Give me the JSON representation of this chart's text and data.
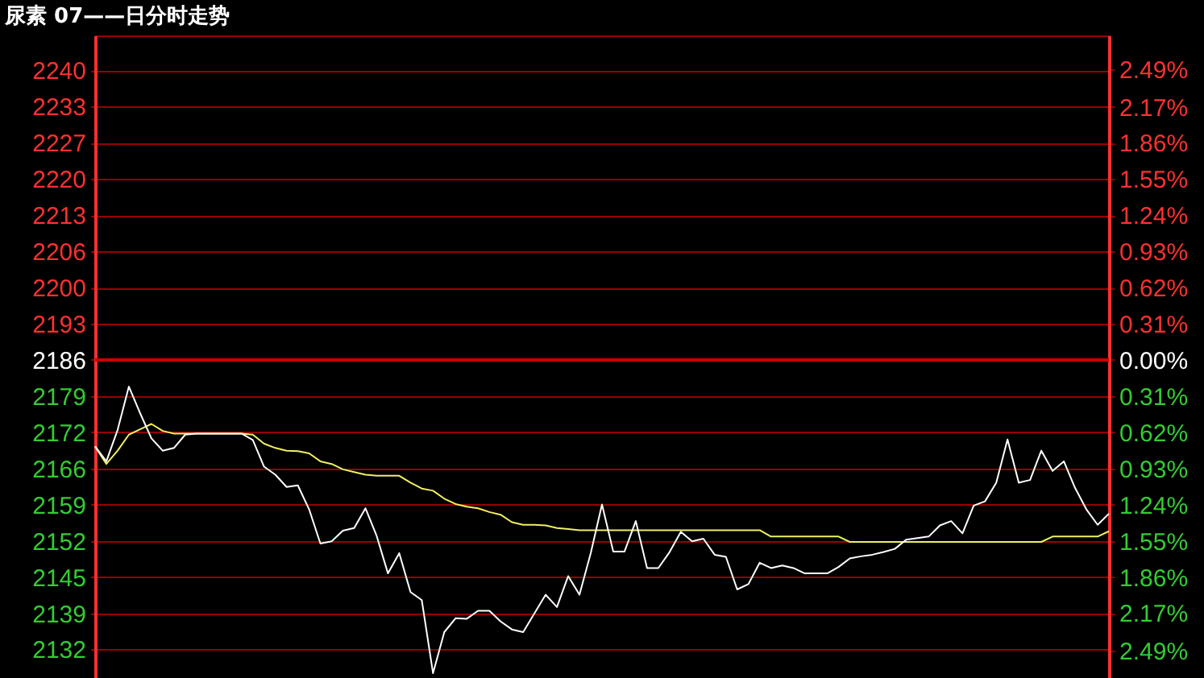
{
  "chart_data": {
    "type": "line",
    "title": "尿素 07——日分时走势",
    "categories": [
      null,
      null,
      null,
      null,
      null,
      null,
      null,
      null,
      null,
      null,
      null,
      null,
      null,
      null,
      null,
      null,
      null,
      null,
      null,
      null,
      null,
      null,
      null,
      null,
      null,
      null,
      null,
      null,
      null,
      null,
      null,
      null,
      null,
      null,
      null,
      null,
      null,
      null,
      null,
      null,
      null,
      null,
      null,
      null,
      null,
      null,
      null,
      null,
      null,
      null,
      null,
      null,
      null,
      null,
      null,
      null,
      null,
      null,
      null,
      null,
      null,
      null,
      null,
      null,
      null,
      null,
      null,
      null,
      null,
      null,
      null,
      null,
      null,
      null,
      null,
      null,
      null,
      null,
      null,
      null,
      null,
      null,
      null,
      null,
      null,
      null,
      null,
      null,
      null,
      null,
      null
    ],
    "series": [
      {
        "color": "#f0f060",
        "values": [
          2169.8,
          2166.5,
          2169,
          2172,
          2173,
          2174,
          2172.7,
          2172.2,
          2172.2,
          2172.2,
          2172.2,
          2172.2,
          2172.2,
          2172.2,
          2172,
          2170.3,
          2169.5,
          2169,
          2168.9,
          2168.5,
          2167,
          2166.5,
          2165.5,
          2165,
          2164.5,
          2164.3,
          2164.3,
          2164.3,
          2163,
          2161.9,
          2161.5,
          2160,
          2159,
          2158.5,
          2158.2,
          2157.5,
          2157,
          2155.6,
          2155.1,
          2155.1,
          2155,
          2154.5,
          2154.3,
          2154.1,
          2154.1,
          2154.1,
          2154.1,
          2154.1,
          2154.1,
          2154.1,
          2154.1,
          2154.1,
          2154.1,
          2154.1,
          2154.1,
          2154.1,
          2154.1,
          2154.1,
          2154.1,
          2154.1,
          2152.9,
          2152.9,
          2152.9,
          2152.9,
          2152.9,
          2152.9,
          2152.9,
          2151.9,
          2151.9,
          2151.9,
          2151.9,
          2151.9,
          2151.9,
          2151.9,
          2151.9,
          2151.9,
          2151.9,
          2151.9,
          2151.9,
          2151.9,
          2151.9,
          2151.9,
          2151.9,
          2151.9,
          2151.9,
          2152.9,
          2152.9,
          2152.9,
          2152.9,
          2152.9,
          2153.9
        ]
      },
      {
        "color": "#ffffff",
        "values": [
          2169.8,
          2167,
          2172.9,
          2181,
          2176,
          2171.3,
          2169,
          2169.5,
          2172,
          2172.2,
          2172.2,
          2172.2,
          2172.2,
          2172.2,
          2171,
          2166,
          2164.5,
          2162.2,
          2162.5,
          2158,
          2151.6,
          2152,
          2154,
          2154.5,
          2158.2,
          2153,
          2146,
          2149.8,
          2142.5,
          2141,
          2127.3,
          2135,
          2137.6,
          2137.5,
          2139,
          2139,
          2137,
          2135.5,
          2135,
          2138.5,
          2142,
          2139.7,
          2145.5,
          2142,
          2149.8,
          2158.9,
          2150.1,
          2150.1,
          2155.8,
          2147,
          2147,
          2150,
          2153.8,
          2152,
          2152.5,
          2149.5,
          2149.1,
          2143,
          2144,
          2148,
          2147,
          2147.5,
          2147,
          2146,
          2146,
          2146,
          2147.2,
          2148.8,
          2149.2,
          2149.5,
          2150,
          2150.6,
          2152.3,
          2152.6,
          2152.9,
          2155,
          2155.8,
          2153.5,
          2158.7,
          2159.5,
          2163,
          2171.1,
          2163,
          2163.5,
          2169,
          2165.2,
          2167,
          2162,
          2158,
          2155.1,
          2157.2
        ]
      }
    ],
    "ylim": [
      2126.4,
      2246.8
    ],
    "yticks": [
      {
        "value": 2131.76,
        "label": "2132"
      },
      {
        "value": 2138.54,
        "label": "2139"
      },
      {
        "value": 2145.32,
        "label": "2145"
      },
      {
        "value": 2152.1,
        "label": "2152"
      },
      {
        "value": 2158.88,
        "label": "2159"
      },
      {
        "value": 2165.66,
        "label": "2166"
      },
      {
        "value": 2172.44,
        "label": "2172"
      },
      {
        "value": 2179.22,
        "label": "2179"
      },
      {
        "value": 2186,
        "label": "2186"
      },
      {
        "value": 2192.78,
        "label": "2193"
      },
      {
        "value": 2199.56,
        "label": "2200"
      },
      {
        "value": 2206.34,
        "label": "2206"
      },
      {
        "value": 2213.12,
        "label": "2213"
      },
      {
        "value": 2219.9,
        "label": "2220"
      },
      {
        "value": 2226.68,
        "label": "2227"
      },
      {
        "value": 2233.46,
        "label": "2233"
      },
      {
        "value": 2240.24,
        "label": "2240"
      }
    ],
    "y2lim": [
      -2.726,
      2.781
    ],
    "y2ticks": [
      {
        "value": -2.49,
        "label": "2.49%"
      },
      {
        "value": -2.17,
        "label": "2.17%"
      },
      {
        "value": -1.86,
        "label": "1.86%"
      },
      {
        "value": -1.55,
        "label": "1.55%"
      },
      {
        "value": -1.24,
        "label": "1.24%"
      },
      {
        "value": -0.93,
        "label": "0.93%"
      },
      {
        "value": -0.62,
        "label": "0.62%"
      },
      {
        "value": -0.31,
        "label": "0.31%"
      },
      {
        "value": 0,
        "label": "0.00%"
      },
      {
        "value": 0.31,
        "label": "0.31%"
      },
      {
        "value": 0.62,
        "label": "0.62%"
      },
      {
        "value": 0.93,
        "label": "0.93%"
      },
      {
        "value": 1.24,
        "label": "1.24%"
      },
      {
        "value": 1.55,
        "label": "1.55%"
      },
      {
        "value": 1.86,
        "label": "1.86%"
      },
      {
        "value": 2.17,
        "label": "2.17%"
      },
      {
        "value": 2.49,
        "label": "2.49%"
      }
    ],
    "ref_lines": [
      {
        "axis": "y2",
        "value": 0,
        "color": "#cc0000"
      }
    ],
    "grid": true
  }
}
